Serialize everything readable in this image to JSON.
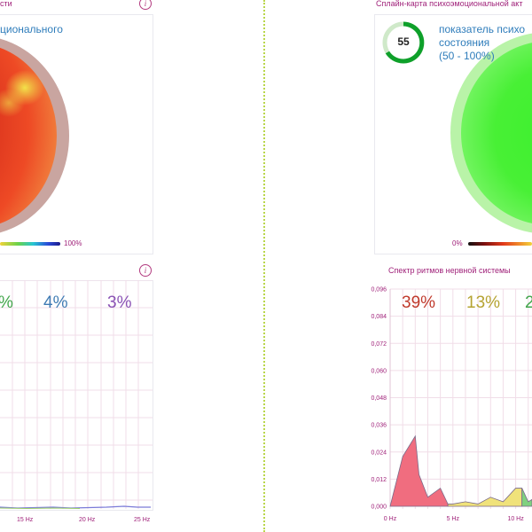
{
  "left_panel": {
    "title": "сти",
    "gauge_title": "ционального",
    "scale_max": "100%",
    "band_percents": [
      {
        "text": "%",
        "color": "#41a64b"
      },
      {
        "text": "4%",
        "color": "#3f7bb3"
      },
      {
        "text": "3%",
        "color": "#8a52b5"
      }
    ],
    "x_ticks": [
      "15 Hz",
      "20 Hz",
      "25 Hz"
    ]
  },
  "right_panel": {
    "title": "Сплайн-карта психоэмоциональной акт",
    "score": "55",
    "indicator_line1": "показатель психо",
    "indicator_line2": "состояния",
    "indicator_range": "(50 - 100%)",
    "scale_min": "0%",
    "spectrum_title": "Спектр ритмов нервной системы",
    "band_percents": [
      {
        "text": "39%",
        "color": "#c0392b"
      },
      {
        "text": "13%",
        "color": "#b5a332"
      },
      {
        "text": "2",
        "color": "#41a64b"
      }
    ],
    "y_ticks": [
      "0,096",
      "0,084",
      "0,072",
      "0,060",
      "0,048",
      "0,036",
      "0,024",
      "0,012",
      "0,000"
    ],
    "x_ticks": [
      "0 Hz",
      "5 Hz",
      "10 Hz"
    ]
  },
  "chart_data": {
    "type": "area",
    "title": "Спектр ритмов нервной системы",
    "x_unit": "Hz",
    "xlim": [
      0,
      11.3
    ],
    "ylim": [
      0,
      0.096
    ],
    "series": [
      {
        "color": "#f06d7f",
        "x": [
          0,
          1,
          2,
          2.3,
          3,
          4,
          4.6
        ],
        "y": [
          0,
          0.022,
          0.031,
          0.014,
          0.004,
          0.008,
          0.001
        ]
      },
      {
        "color": "#f0e27a",
        "x": [
          4.6,
          5,
          6,
          7,
          8,
          9,
          10,
          10.5
        ],
        "y": [
          0.001,
          0.001,
          0.002,
          0.001,
          0.004,
          0.002,
          0.008,
          0.008
        ]
      },
      {
        "color": "#7fd17f",
        "x": [
          10.5,
          11,
          11.3
        ],
        "y": [
          0.008,
          0.002,
          0.003
        ]
      }
    ]
  }
}
